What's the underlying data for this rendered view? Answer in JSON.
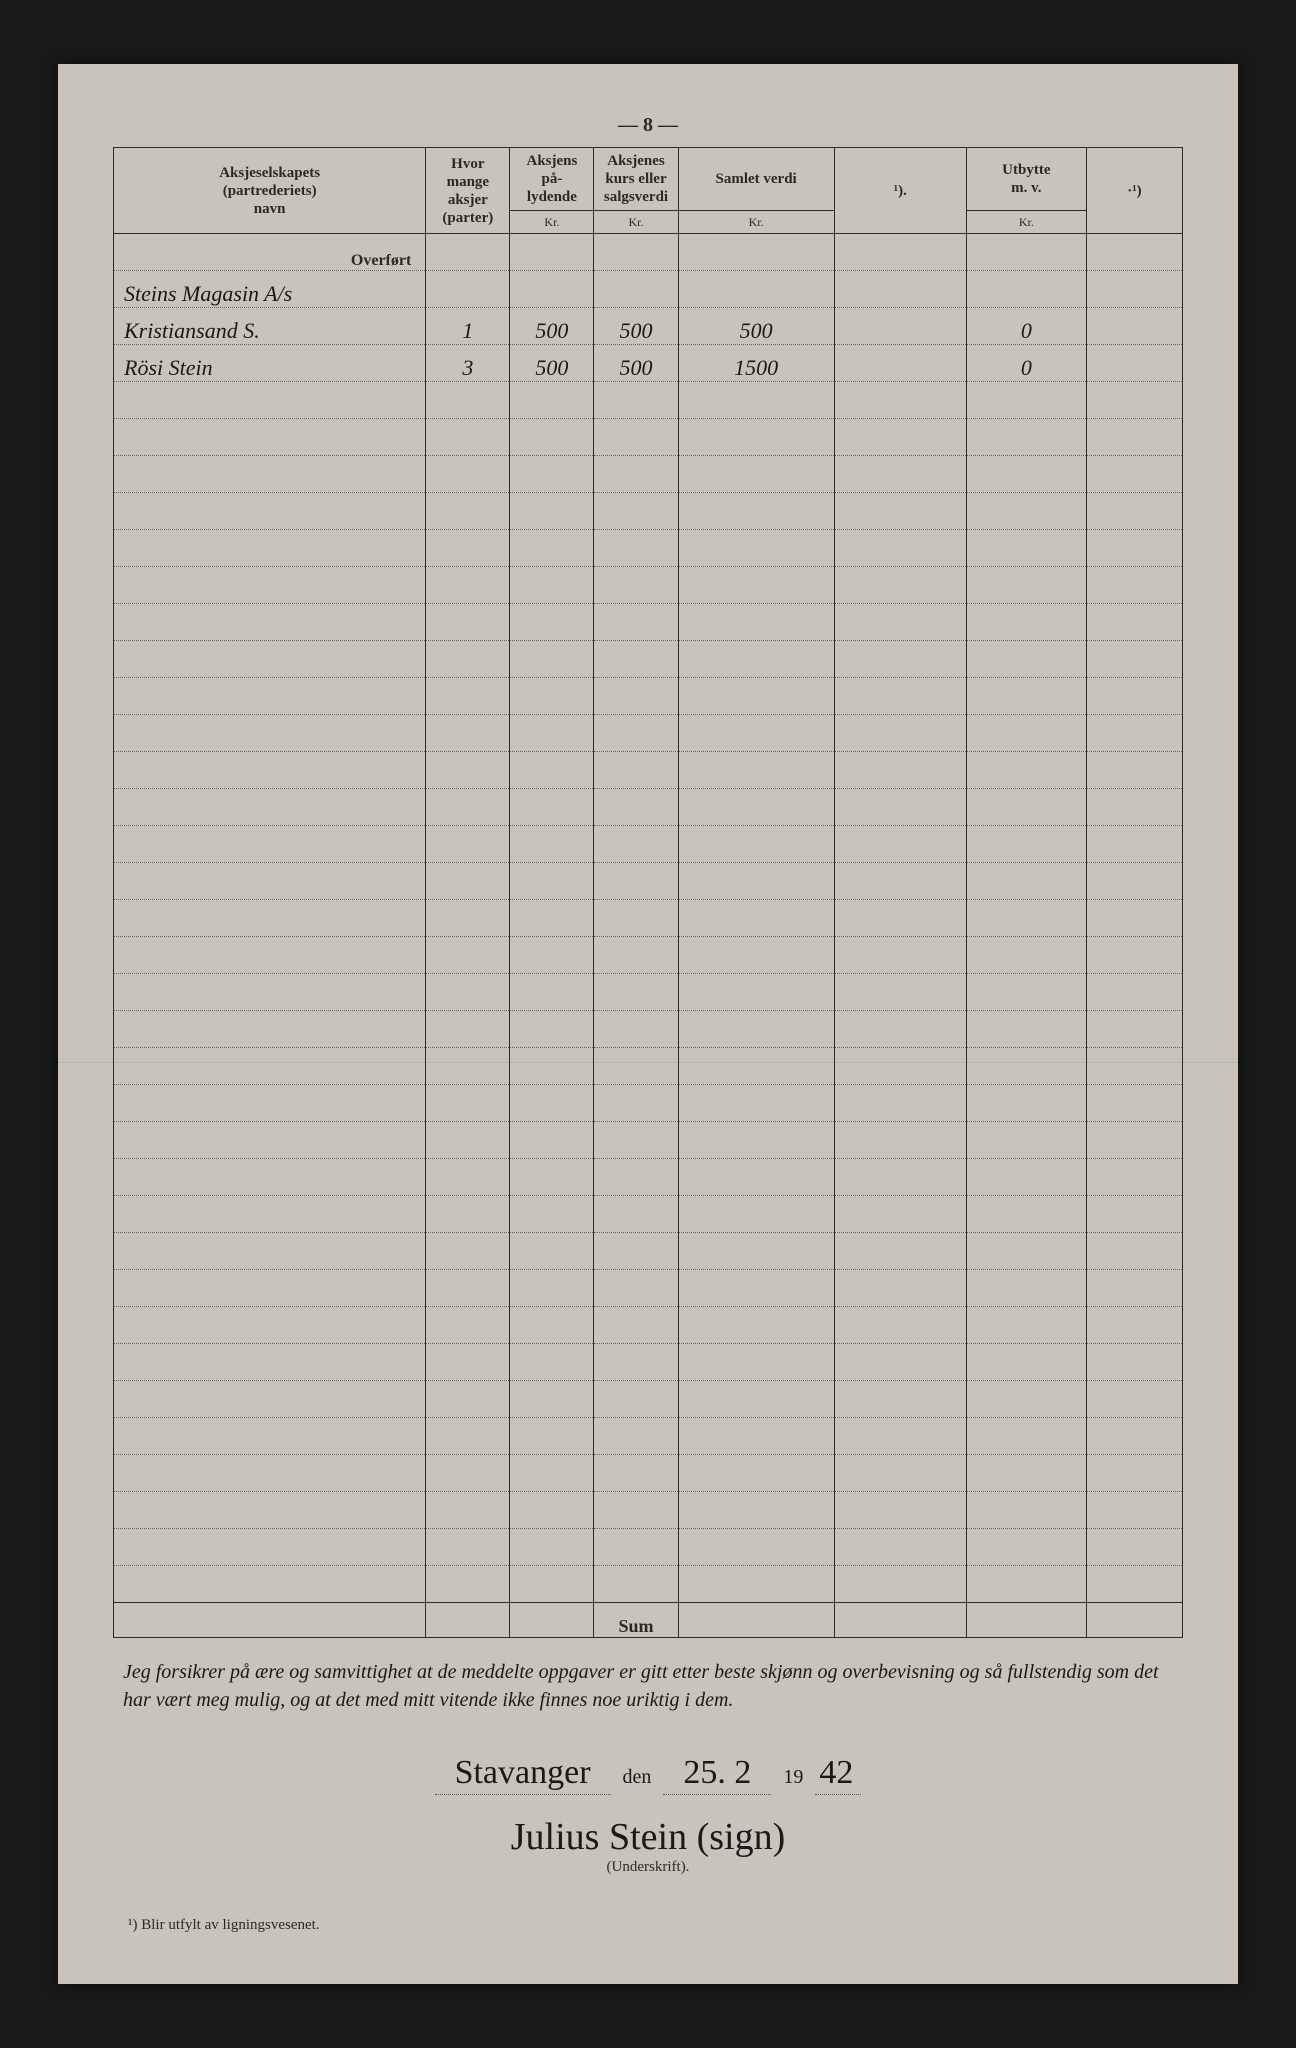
{
  "page_number": "— 8 —",
  "columns": {
    "c1": "Aksjeselskapets\n(partrederiets)\nnavn",
    "c2": "Hvor\nmange\naksjer\n(parter)",
    "c3": "Aksjens\npå-\nlydende",
    "c3_sub": "Kr.",
    "c4": "Aksjenes\nkurs eller\nsalgsverdi",
    "c4_sub": "Kr.",
    "c5": "Samlet verdi",
    "c5_sub": "Kr.",
    "c6": "¹).",
    "c7": "Utbytte\nm. v.",
    "c7_sub": "Kr.",
    "c8": "·¹)"
  },
  "overfort_label": "Overført",
  "rows": [
    {
      "name": "Steins Magasin A/s",
      "aksjer": "",
      "palydende": "",
      "salgsverdi": "",
      "samlet": "",
      "c6": "",
      "utbytte": "",
      "c8": ""
    },
    {
      "name": "Kristiansand S.",
      "aksjer": "1",
      "palydende": "500",
      "salgsverdi": "500",
      "samlet": "500",
      "c6": "",
      "utbytte": "0",
      "c8": ""
    },
    {
      "name": "Rösi Stein",
      "aksjer": "3",
      "palydende": "500",
      "salgsverdi": "500",
      "samlet": "1500",
      "c6": "",
      "utbytte": "0",
      "c8": ""
    }
  ],
  "empty_rows": 33,
  "sum_label": "Sum",
  "declaration": "Jeg forsikrer på ære og samvittighet at de meddelte oppgaver er gitt etter beste skjønn og overbevisning og så fullstendig som det har vært meg mulig, og at det med mitt vitende ikke finnes noe uriktig i dem.",
  "place": "Stavanger",
  "den": "den",
  "date": "25. 2",
  "year_prefix": "19",
  "year_suffix": "42",
  "signature": "Julius Stein (sign)",
  "signature_label": "(Underskrift).",
  "footnote": "¹) Blir utfylt av ligningsvesenet.",
  "colors": {
    "paper": "#c8c4bb",
    "ink": "#2a2a2a",
    "handwriting": "#1a1a1a",
    "dotted": "#6a6a62",
    "background": "#1a1a1a"
  },
  "col_widths_pct": [
    26,
    7,
    7,
    7,
    13,
    11,
    10,
    8
  ]
}
